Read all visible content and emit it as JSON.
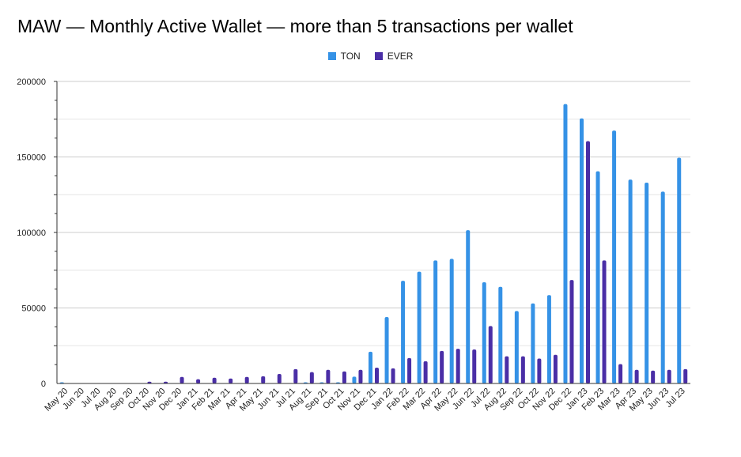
{
  "chart_data": {
    "type": "bar",
    "title": "MAW — Monthly Active Wallet — more than 5 transactions per wallet",
    "xlabel": "",
    "ylabel": "",
    "ylim": [
      0,
      200000
    ],
    "yticks": [
      "0",
      "50000",
      "100000",
      "150000",
      "200000"
    ],
    "grid": true,
    "legend": "top",
    "categories": [
      "May 20",
      "Jun 20",
      "Jul 20",
      "Aug 20",
      "Sep 20",
      "Oct 20",
      "Nov 20",
      "Dec 20",
      "Jan 21",
      "Feb 21",
      "Mar 21",
      "Apr 21",
      "May 21",
      "Jun 21",
      "Jul 21",
      "Aug 21",
      "Sep 21",
      "Oct 21",
      "Nov 21",
      "Dec 21",
      "Jan 22",
      "Feb 22",
      "Mar 22",
      "Apr 22",
      "May 22",
      "Jun 22",
      "Jul 22",
      "Aug 22",
      "Sep 22",
      "Oct 22",
      "Nov 22",
      "Dec 22",
      "Jan 23",
      "Feb 23",
      "Mar 23",
      "Apr 23",
      "May 23",
      "Jun 23",
      "Jul 23"
    ],
    "series": [
      {
        "name": "TON",
        "color": "#3592e6",
        "values": [
          500,
          0,
          0,
          0,
          0,
          0,
          0,
          0,
          0,
          0,
          0,
          0,
          0,
          0,
          0,
          600,
          500,
          500,
          4500,
          21000,
          44000,
          68000,
          74000,
          81500,
          82500,
          101500,
          67000,
          64000,
          48000,
          53000,
          58500,
          185000,
          175500,
          140500,
          167500,
          135000,
          133000,
          127000,
          149500
        ]
      },
      {
        "name": "EVER",
        "color": "#4a2ea6",
        "values": [
          0,
          0,
          0,
          0,
          0,
          1200,
          1200,
          4300,
          2800,
          3800,
          3300,
          4300,
          4800,
          6300,
          9500,
          7500,
          9000,
          8000,
          9000,
          10500,
          10000,
          16800,
          14700,
          21500,
          23000,
          22500,
          38000,
          18000,
          18000,
          16500,
          19000,
          68500,
          160500,
          81500,
          12800,
          9000,
          8500,
          9000,
          9500
        ]
      }
    ]
  }
}
